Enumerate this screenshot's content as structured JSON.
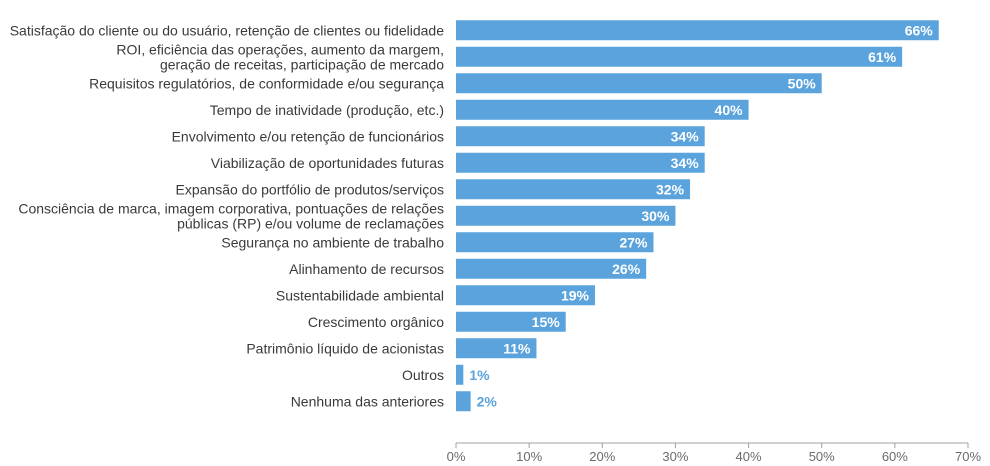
{
  "chart_data": {
    "type": "bar",
    "orientation": "horizontal",
    "categories": [
      [
        "Satisfação do cliente ou do usuário, retenção de clientes ou fidelidade"
      ],
      [
        "ROI, eficiência das operações, aumento da margem,",
        "geração de receitas, participação de mercado"
      ],
      [
        "Requisitos regulatórios, de conformidade e/ou segurança"
      ],
      [
        "Tempo de inatividade (produção, etc.)"
      ],
      [
        "Envolvimento e/ou retenção de funcionários"
      ],
      [
        "Viabilização de oportunidades futuras"
      ],
      [
        "Expansão do portfólio de produtos/serviços"
      ],
      [
        "Consciência de marca, imagem corporativa, pontuações de relações",
        "públicas (RP) e/ou volume de reclamações"
      ],
      [
        "Segurança no ambiente de trabalho"
      ],
      [
        "Alinhamento de recursos"
      ],
      [
        "Sustentabilidade ambiental"
      ],
      [
        "Crescimento orgânico"
      ],
      [
        "Patrimônio líquido de acionistas"
      ],
      [
        "Outros"
      ],
      [
        "Nenhuma das anteriores"
      ]
    ],
    "values": [
      66,
      61,
      50,
      40,
      34,
      34,
      32,
      30,
      27,
      26,
      19,
      15,
      11,
      1,
      2
    ],
    "value_labels": [
      "66%",
      "61%",
      "50%",
      "40%",
      "34%",
      "34%",
      "32%",
      "30%",
      "27%",
      "26%",
      "19%",
      "15%",
      "11%",
      "1%",
      "2%"
    ],
    "xlim": [
      0,
      70
    ],
    "xticks": [
      0,
      10,
      20,
      30,
      40,
      50,
      60,
      70
    ],
    "xtick_labels": [
      "0%",
      "10%",
      "20%",
      "30%",
      "40%",
      "50%",
      "60%",
      "70%"
    ],
    "title": "",
    "xlabel": "",
    "ylabel": "",
    "grid": false,
    "legend": "none",
    "bar_color": "#5aa3dc",
    "label_inside_color": "#ffffff",
    "label_outside_color": "#5aa3dc",
    "axis_color": "#a0a0a0"
  }
}
